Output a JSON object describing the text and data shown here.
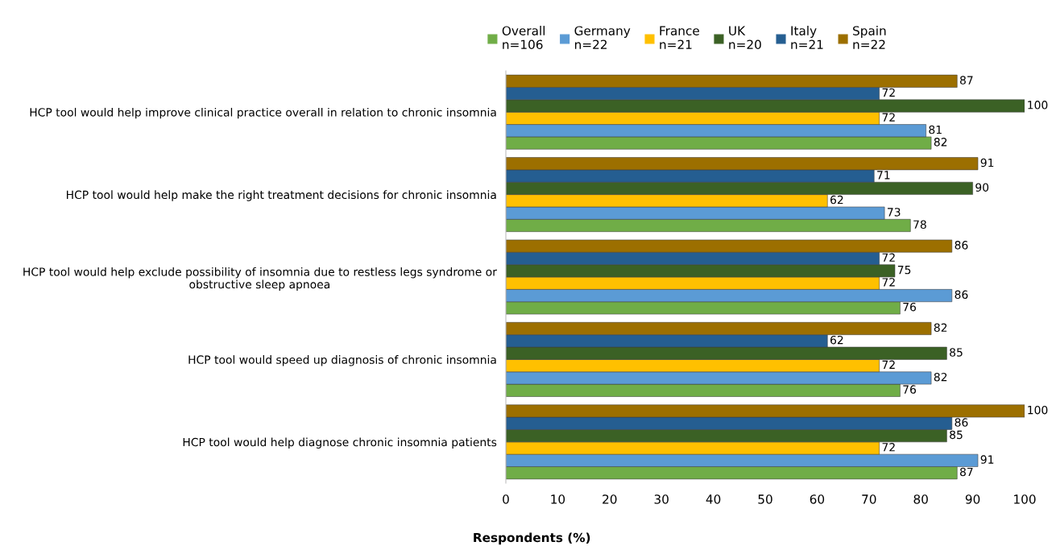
{
  "chart_data": {
    "type": "bar",
    "orientation": "horizontal",
    "xlabel": "Respondents (%)",
    "categories": [
      "HCP tool would help improve clinical practice overall in relation to chronic insomnia",
      "HCP tool would help make the right treatment decisions for chronic insomnia",
      "HCP tool would help exclude possibility of insomnia due to restless legs syndrome or\nobstructive sleep apnoea",
      "HCP tool would speed up diagnosis of chronic insomnia",
      "HCP tool would help diagnose chronic insomnia patients"
    ],
    "series": [
      {
        "name": "Overall\nn=106",
        "color": "#70ad47",
        "values": [
          82,
          78,
          76,
          76,
          87
        ]
      },
      {
        "name": "Germany\nn=22",
        "color": "#5b9bd5",
        "values": [
          81,
          73,
          86,
          82,
          91
        ]
      },
      {
        "name": "France\nn=21",
        "color": "#ffc000",
        "values": [
          72,
          62,
          72,
          72,
          72
        ]
      },
      {
        "name": "UK\nn=20",
        "color": "#3b6125",
        "values": [
          100,
          90,
          75,
          85,
          85
        ]
      },
      {
        "name": "Italy\nn=21",
        "color": "#255e91",
        "values": [
          72,
          71,
          72,
          62,
          86
        ]
      },
      {
        "name": "Spain\nn=22",
        "color": "#9c6f00",
        "values": [
          87,
          91,
          86,
          82,
          100
        ]
      }
    ],
    "xlim": [
      0,
      100
    ],
    "xticks": [
      0,
      10,
      20,
      30,
      40,
      50,
      60,
      70,
      80,
      90,
      100
    ],
    "data_labels": true,
    "grid": false,
    "legend": "top"
  }
}
